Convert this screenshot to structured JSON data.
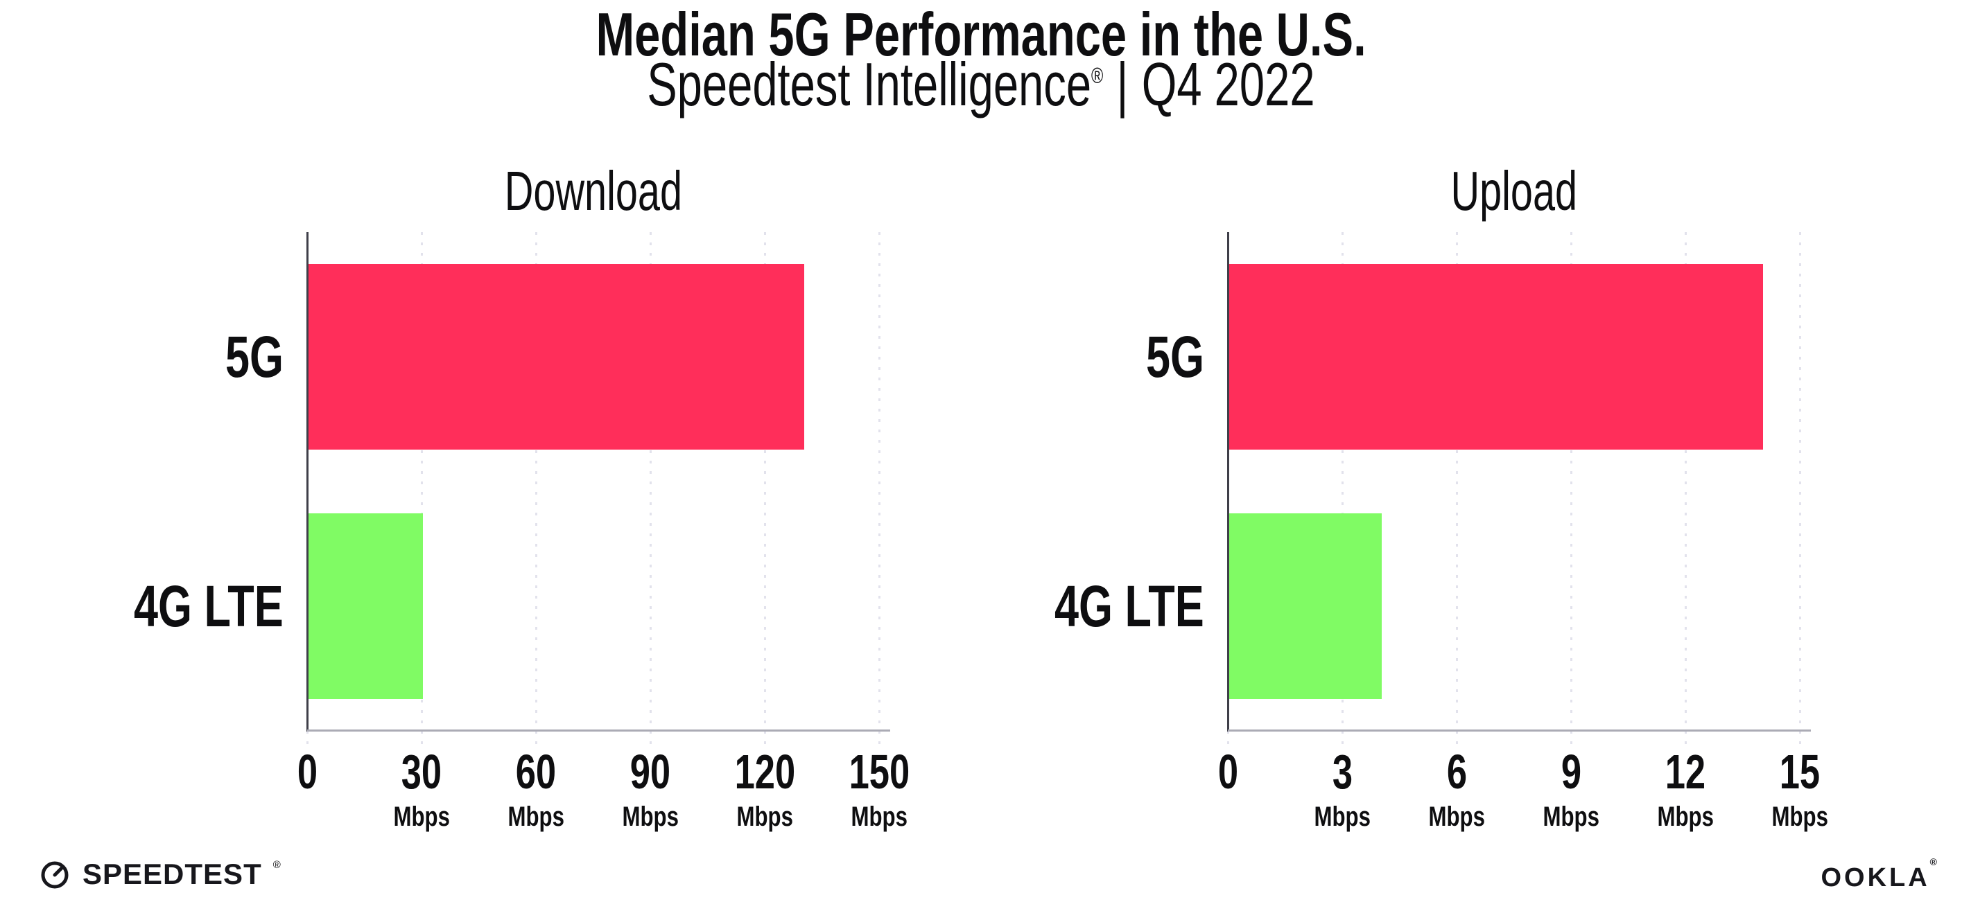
{
  "page": {
    "title": "Median 5G Performance in the U.S.",
    "subtitle": {
      "brand": "Speedtest Intelligence",
      "registered_mark": "®",
      "divider": "|",
      "period": "Q4 2022"
    }
  },
  "footer": {
    "speedtest": {
      "text": "SPEEDTEST",
      "registered_mark": "®",
      "icon": "speedtest-gauge-icon"
    },
    "ookla": {
      "text": "OOKLA",
      "registered_mark": "®"
    }
  },
  "colors": {
    "bar_5g": "#FF2E5A",
    "bar_4g_lte": "#80FB64",
    "gridline": "#E2E2EC",
    "axis_bottom": "#ABABB5",
    "axis_left": "#3F3F49",
    "text": "#0E0E10",
    "background": "#FFFFFF"
  },
  "chart_data": [
    {
      "type": "bar",
      "orientation": "horizontal",
      "title": "Download",
      "categories": [
        "5G",
        "4G LTE"
      ],
      "values": [
        130,
        30
      ],
      "unit": "Mbps",
      "xlim": [
        0,
        150
      ],
      "xticks": [
        0,
        30,
        60,
        90,
        120,
        150
      ],
      "xtick_unit": "Mbps",
      "bar_colors": [
        "#FF2E5A",
        "#80FB64"
      ],
      "grid": "dotted-vertical",
      "legend": "none"
    },
    {
      "type": "bar",
      "orientation": "horizontal",
      "title": "Upload",
      "categories": [
        "5G",
        "4G LTE"
      ],
      "values": [
        14,
        4
      ],
      "unit": "Mbps",
      "xlim": [
        0,
        15
      ],
      "xticks": [
        0,
        3,
        6,
        9,
        12,
        15
      ],
      "xtick_unit": "Mbps",
      "bar_colors": [
        "#FF2E5A",
        "#80FB64"
      ],
      "grid": "dotted-vertical",
      "legend": "none"
    }
  ]
}
